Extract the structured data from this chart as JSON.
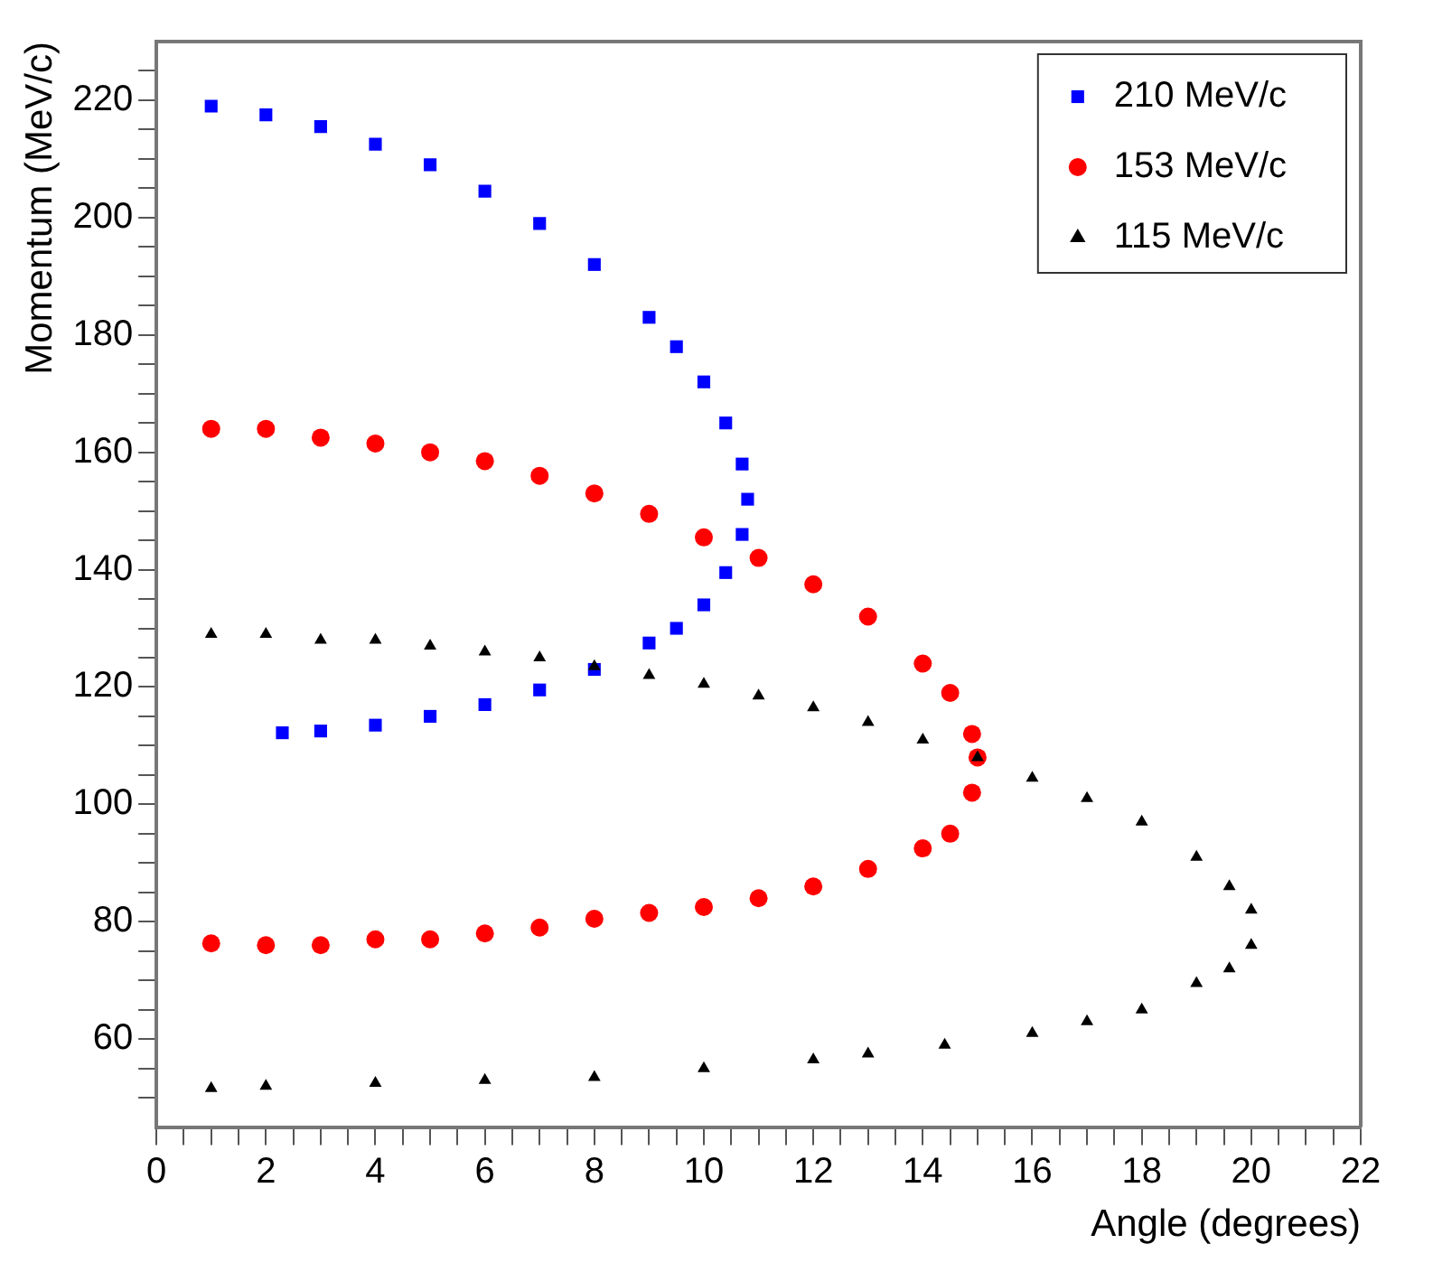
{
  "chart_data": {
    "type": "scatter",
    "xlabel": "Angle (degrees)",
    "ylabel": "Momentum (MeV/c)",
    "xlim": [
      0,
      22
    ],
    "ylim": [
      45,
      230
    ],
    "xticks": [
      0,
      {
        "value": 0.5,
        "label": null
      },
      {
        "value": 1,
        "label": null
      },
      {
        "value": 1.5,
        "label": null
      },
      2,
      {
        "value": 2.5,
        "label": null
      },
      {
        "value": 3,
        "label": null
      },
      {
        "value": 3.5,
        "label": null
      },
      4,
      {
        "value": 4.5,
        "label": null
      },
      {
        "value": 5,
        "label": null
      },
      {
        "value": 5.5,
        "label": null
      },
      6,
      {
        "value": 6.5,
        "label": null
      },
      {
        "value": 7,
        "label": null
      },
      {
        "value": 7.5,
        "label": null
      },
      8,
      {
        "value": 8.5,
        "label": null
      },
      {
        "value": 9,
        "label": null
      },
      {
        "value": 9.5,
        "label": null
      },
      10,
      {
        "value": 10.5,
        "label": null
      },
      {
        "value": 11,
        "label": null
      },
      {
        "value": 11.5,
        "label": null
      },
      12,
      {
        "value": 12.5,
        "label": null
      },
      {
        "value": 13,
        "label": null
      },
      {
        "value": 13.5,
        "label": null
      },
      14,
      {
        "value": 14.5,
        "label": null
      },
      {
        "value": 15,
        "label": null
      },
      {
        "value": 15.5,
        "label": null
      },
      16,
      {
        "value": 16.5,
        "label": null
      },
      {
        "value": 17,
        "label": null
      },
      {
        "value": 17.5,
        "label": null
      },
      18,
      {
        "value": 18.5,
        "label": null
      },
      {
        "value": 19,
        "label": null
      },
      {
        "value": 19.5,
        "label": null
      },
      20,
      {
        "value": 20.5,
        "label": null
      },
      {
        "value": 21,
        "label": null
      },
      {
        "value": 21.5,
        "label": null
      },
      22
    ],
    "yticks": [
      {
        "value": 50,
        "label": null
      },
      {
        "value": 55,
        "label": null
      },
      60,
      {
        "value": 65,
        "label": null
      },
      {
        "value": 70,
        "label": null
      },
      {
        "value": 75,
        "label": null
      },
      80,
      {
        "value": 85,
        "label": null
      },
      {
        "value": 90,
        "label": null
      },
      {
        "value": 95,
        "label": null
      },
      100,
      {
        "value": 105,
        "label": null
      },
      {
        "value": 110,
        "label": null
      },
      {
        "value": 115,
        "label": null
      },
      120,
      {
        "value": 125,
        "label": null
      },
      {
        "value": 130,
        "label": null
      },
      {
        "value": 135,
        "label": null
      },
      140,
      {
        "value": 145,
        "label": null
      },
      {
        "value": 150,
        "label": null
      },
      {
        "value": 155,
        "label": null
      },
      160,
      {
        "value": 165,
        "label": null
      },
      {
        "value": 170,
        "label": null
      },
      {
        "value": 175,
        "label": null
      },
      180,
      {
        "value": 185,
        "label": null
      },
      {
        "value": 190,
        "label": null
      },
      {
        "value": 195,
        "label": null
      },
      200,
      {
        "value": 205,
        "label": null
      },
      {
        "value": 210,
        "label": null
      },
      {
        "value": 215,
        "label": null
      },
      220,
      {
        "value": 225,
        "label": null
      }
    ],
    "grid": false,
    "legend": "top right",
    "series": [
      {
        "name": "210 MeV/c",
        "color": "#0000ff",
        "marker": "square",
        "x": [
          1,
          2,
          3,
          4,
          5,
          6,
          7,
          8,
          9,
          9.5,
          10,
          10.4,
          10.7,
          10.8,
          10.7,
          10.4,
          10,
          9.5,
          9,
          8,
          7,
          6,
          5,
          4,
          3,
          2.3
        ],
        "values": [
          219,
          217.5,
          215.5,
          212.5,
          209,
          204.5,
          199,
          192,
          183,
          178,
          172,
          165,
          158,
          152,
          146,
          139.5,
          134,
          130,
          127.5,
          123,
          119.5,
          117,
          115,
          113.5,
          112.5,
          112.2
        ]
      },
      {
        "name": "153 MeV/c",
        "color": "#ff0000",
        "marker": "circle",
        "x": [
          1,
          2,
          3,
          4,
          5,
          6,
          7,
          8,
          9,
          10,
          11,
          12,
          13,
          14,
          14.5,
          14.9,
          15,
          14.9,
          14.5,
          14,
          13,
          12,
          11,
          10,
          9,
          8,
          7,
          6,
          5,
          4,
          3,
          2,
          1
        ],
        "values": [
          164,
          164,
          162.5,
          161.5,
          160,
          158.5,
          156,
          153,
          149.5,
          145.5,
          142,
          137.5,
          132,
          124,
          119,
          112,
          108,
          102,
          95,
          92.5,
          89,
          86,
          84,
          82.5,
          81.5,
          80.5,
          79,
          78,
          77,
          77,
          76,
          76,
          76.3
        ]
      },
      {
        "name": "115 MeV/c",
        "color": "#000000",
        "marker": "triangle",
        "x": [
          1,
          2,
          3,
          4,
          5,
          6,
          7,
          8,
          9,
          10,
          11,
          12,
          13,
          14,
          15,
          16,
          17,
          18,
          19,
          19.6,
          20,
          20,
          19.6,
          19,
          18,
          17,
          16,
          14.4,
          13,
          12,
          10,
          8,
          6,
          4,
          2,
          1
        ],
        "values": [
          129,
          129,
          128,
          128,
          127,
          126,
          125,
          123.5,
          122,
          120.5,
          118.5,
          116.5,
          114,
          111,
          108,
          104.5,
          101,
          97,
          91,
          86,
          82,
          76,
          72,
          69.5,
          65,
          63,
          61,
          59,
          57.5,
          56.5,
          55,
          53.5,
          53,
          52.5,
          52,
          51.6
        ]
      }
    ]
  }
}
